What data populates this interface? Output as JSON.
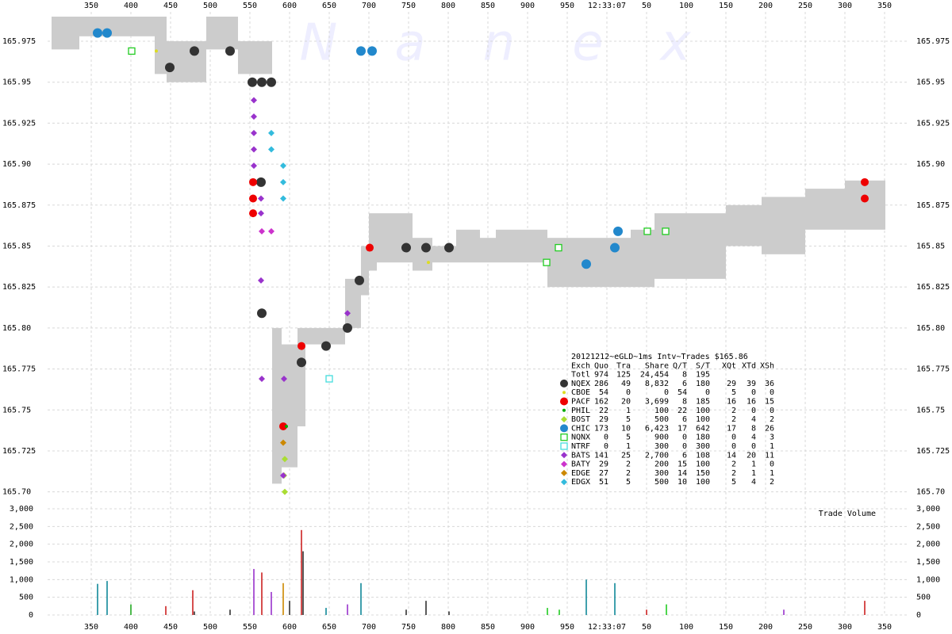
{
  "chart_data": {
    "type": "scatter",
    "watermark": "Nanex",
    "volume_title": "Trade Volume",
    "xlim": [
      295,
      1380
    ],
    "xticks": [
      350,
      400,
      450,
      500,
      550,
      600,
      650,
      700,
      750,
      800,
      850,
      900,
      950,
      {
        "value": 1000,
        "label": "12:33:07"
      },
      {
        "value": 1050,
        "label": "50"
      },
      {
        "value": 1100,
        "label": "100"
      },
      {
        "value": 1150,
        "label": "150"
      },
      {
        "value": 1200,
        "label": "200"
      },
      {
        "value": 1250,
        "label": "250"
      },
      {
        "value": 1300,
        "label": "300"
      },
      {
        "value": 1350,
        "label": "350"
      }
    ],
    "ylim": [
      165.695,
      165.99
    ],
    "yticks": [
      165.975,
      165.95,
      165.925,
      {
        "value": 165.9,
        "label": "165.90"
      },
      165.875,
      165.85,
      165.825,
      {
        "value": 165.8,
        "label": "165.80"
      },
      165.775,
      165.75,
      165.725,
      {
        "value": 165.7,
        "label": "165.70"
      }
    ],
    "vlim": [
      0,
      3000
    ],
    "vticks": [
      {
        "value": 3000,
        "label": "3,000"
      },
      {
        "value": 2500,
        "label": "2,500"
      },
      {
        "value": 2000,
        "label": "2,000"
      },
      {
        "value": 1500,
        "label": "1,500"
      },
      {
        "value": 1000,
        "label": "1,000"
      },
      500,
      0
    ],
    "grid": true,
    "band": {
      "color": "#cccccc",
      "x": [
        300,
        335,
        430,
        445,
        495,
        535,
        578,
        590,
        610,
        620,
        670,
        690,
        700,
        710,
        755,
        780,
        810,
        840,
        860,
        925,
        1030,
        1060,
        1150,
        1195,
        1250,
        1300,
        1350
      ],
      "low": [
        165.97,
        165.978,
        165.955,
        165.95,
        165.97,
        165.955,
        165.705,
        165.715,
        165.74,
        165.79,
        165.8,
        165.82,
        165.835,
        165.84,
        165.835,
        165.84,
        165.84,
        165.84,
        165.84,
        165.825,
        165.825,
        165.83,
        165.85,
        165.845,
        165.86,
        165.86,
        165.86
      ],
      "high": [
        165.99,
        165.99,
        165.99,
        165.975,
        165.99,
        165.975,
        165.8,
        165.79,
        165.8,
        165.8,
        165.83,
        165.85,
        165.87,
        165.87,
        165.855,
        165.85,
        165.86,
        165.855,
        165.86,
        165.855,
        165.86,
        165.87,
        165.875,
        165.88,
        165.885,
        165.89,
        165.89
      ]
    },
    "stats": {
      "title": "20121212~eGLD~1ms Intv~Trades $165.86",
      "columns": [
        "Exch",
        "Quo",
        "Tra",
        "Share",
        "Q/T",
        "S/T",
        "XQt",
        "XTd",
        "XSh"
      ],
      "rows": [
        {
          "exch": "Totl",
          "cells": [
            "974",
            "125",
            "24,454",
            "8",
            "195"
          ]
        },
        {
          "exch": "NQEX",
          "cells": [
            "286",
            "49",
            "8,832",
            "6",
            "180",
            "29",
            "39",
            "36"
          ],
          "color": "#333333",
          "shape": "circle",
          "size": 6,
          "x": [
            449,
            480,
            525,
            553,
            565,
            577,
            564,
            565,
            673,
            688,
            747,
            772,
            801,
            646,
            615
          ],
          "y": [
            165.959,
            165.969,
            165.969,
            165.95,
            165.95,
            165.95,
            165.889,
            165.809,
            165.8,
            165.829,
            165.849,
            165.849,
            165.849,
            165.789,
            165.779
          ]
        },
        {
          "exch": "CBOE",
          "cells": [
            "54",
            "0",
            "0",
            "54",
            "0",
            "5",
            "0",
            "0"
          ],
          "color": "#dddd22",
          "shape": "circle",
          "size": 2,
          "x": [
            432,
            775
          ],
          "y": [
            165.969,
            165.84
          ]
        },
        {
          "exch": "PACF",
          "cells": [
            "162",
            "20",
            "3,699",
            "8",
            "185",
            "16",
            "16",
            "15"
          ],
          "color": "#ee0000",
          "shape": "circle",
          "size": 5,
          "x": [
            554,
            554,
            554,
            701,
            1325,
            1325,
            592,
            615
          ],
          "y": [
            165.889,
            165.879,
            165.87,
            165.849,
            165.889,
            165.879,
            165.74,
            165.789
          ]
        },
        {
          "exch": "PHIL",
          "cells": [
            "22",
            "1",
            "100",
            "22",
            "100",
            "2",
            "0",
            "0"
          ],
          "color": "#00aa00",
          "shape": "circle",
          "size": 2,
          "x": [
            596
          ],
          "y": [
            165.74
          ]
        },
        {
          "exch": "BOST",
          "cells": [
            "29",
            "5",
            "500",
            "6",
            "100",
            "2",
            "4",
            "2"
          ],
          "color": "#aadd33",
          "shape": "diamond",
          "size": 4,
          "x": [
            594,
            593,
            594
          ],
          "y": [
            165.72,
            165.71,
            165.7
          ]
        },
        {
          "exch": "CHIC",
          "cells": [
            "173",
            "10",
            "6,423",
            "17",
            "642",
            "17",
            "8",
            "26"
          ],
          "color": "#2288cc",
          "shape": "circle",
          "size": 6,
          "x": [
            358,
            370,
            690,
            704,
            974,
            1010,
            1014
          ],
          "y": [
            165.98,
            165.98,
            165.969,
            165.969,
            165.839,
            165.849,
            165.859
          ]
        },
        {
          "exch": "NQNX",
          "cells": [
            "0",
            "5",
            "900",
            "0",
            "180",
            "0",
            "4",
            "3"
          ],
          "color": "#22cc22",
          "shape": "square",
          "size": 4,
          "x": [
            401,
            924,
            939,
            1051,
            1074
          ],
          "y": [
            165.969,
            165.84,
            165.849,
            165.859,
            165.859
          ]
        },
        {
          "exch": "NTRF",
          "cells": [
            "0",
            "1",
            "300",
            "0",
            "300",
            "0",
            "0",
            "1"
          ],
          "color": "#44dddd",
          "shape": "square",
          "size": 4,
          "x": [
            650
          ],
          "y": [
            165.769
          ]
        },
        {
          "exch": "BATS",
          "cells": [
            "141",
            "25",
            "2,700",
            "6",
            "108",
            "14",
            "20",
            "11"
          ],
          "color": "#9933cc",
          "shape": "diamond",
          "size": 4,
          "x": [
            555,
            555,
            555,
            555,
            555,
            564,
            564,
            564,
            565,
            593,
            592,
            673
          ],
          "y": [
            165.939,
            165.929,
            165.919,
            165.909,
            165.899,
            165.879,
            165.87,
            165.829,
            165.769,
            165.769,
            165.71,
            165.809
          ]
        },
        {
          "exch": "BATY",
          "cells": [
            "29",
            "2",
            "200",
            "15",
            "100",
            "2",
            "1",
            "0"
          ],
          "color": "#cc33cc",
          "shape": "diamond",
          "size": 4,
          "x": [
            565,
            577
          ],
          "y": [
            165.859,
            165.859
          ]
        },
        {
          "exch": "EDGE",
          "cells": [
            "27",
            "2",
            "300",
            "14",
            "150",
            "2",
            "1",
            "1"
          ],
          "color": "#cc8800",
          "shape": "diamond",
          "size": 4,
          "x": [
            592
          ],
          "y": [
            165.73
          ]
        },
        {
          "exch": "EDGX",
          "cells": [
            "51",
            "5",
            "500",
            "10",
            "100",
            "5",
            "4",
            "2"
          ],
          "color": "#33bbdd",
          "shape": "diamond",
          "size": 4,
          "x": [
            577,
            577,
            592,
            592,
            592
          ],
          "y": [
            165.919,
            165.909,
            165.899,
            165.889,
            165.879
          ]
        }
      ]
    },
    "volume": {
      "x": [
        358,
        370,
        400,
        444,
        478,
        480,
        525,
        555,
        565,
        577,
        592,
        600,
        615,
        617,
        646,
        673,
        690,
        747,
        772,
        801,
        925,
        940,
        974,
        1010,
        1050,
        1075,
        1223,
        1325
      ],
      "values": [
        880,
        960,
        300,
        250,
        700,
        100,
        150,
        1300,
        1200,
        650,
        900,
        400,
        2400,
        1800,
        200,
        300,
        900,
        150,
        400,
        100,
        200,
        150,
        1000,
        900,
        150,
        300,
        150,
        400
      ],
      "colors": [
        "#118899",
        "#118899",
        "#22aa22",
        "#cc2222",
        "#cc2222",
        "#333333",
        "#333333",
        "#9933cc",
        "#cc2222",
        "#9933cc",
        "#cc8800",
        "#333333",
        "#cc2222",
        "#333333",
        "#118899",
        "#9933cc",
        "#118899",
        "#333333",
        "#333333",
        "#333333",
        "#22cc22",
        "#22cc22",
        "#118899",
        "#118899",
        "#cc2222",
        "#22cc22",
        "#9933cc",
        "#cc2222"
      ]
    }
  }
}
